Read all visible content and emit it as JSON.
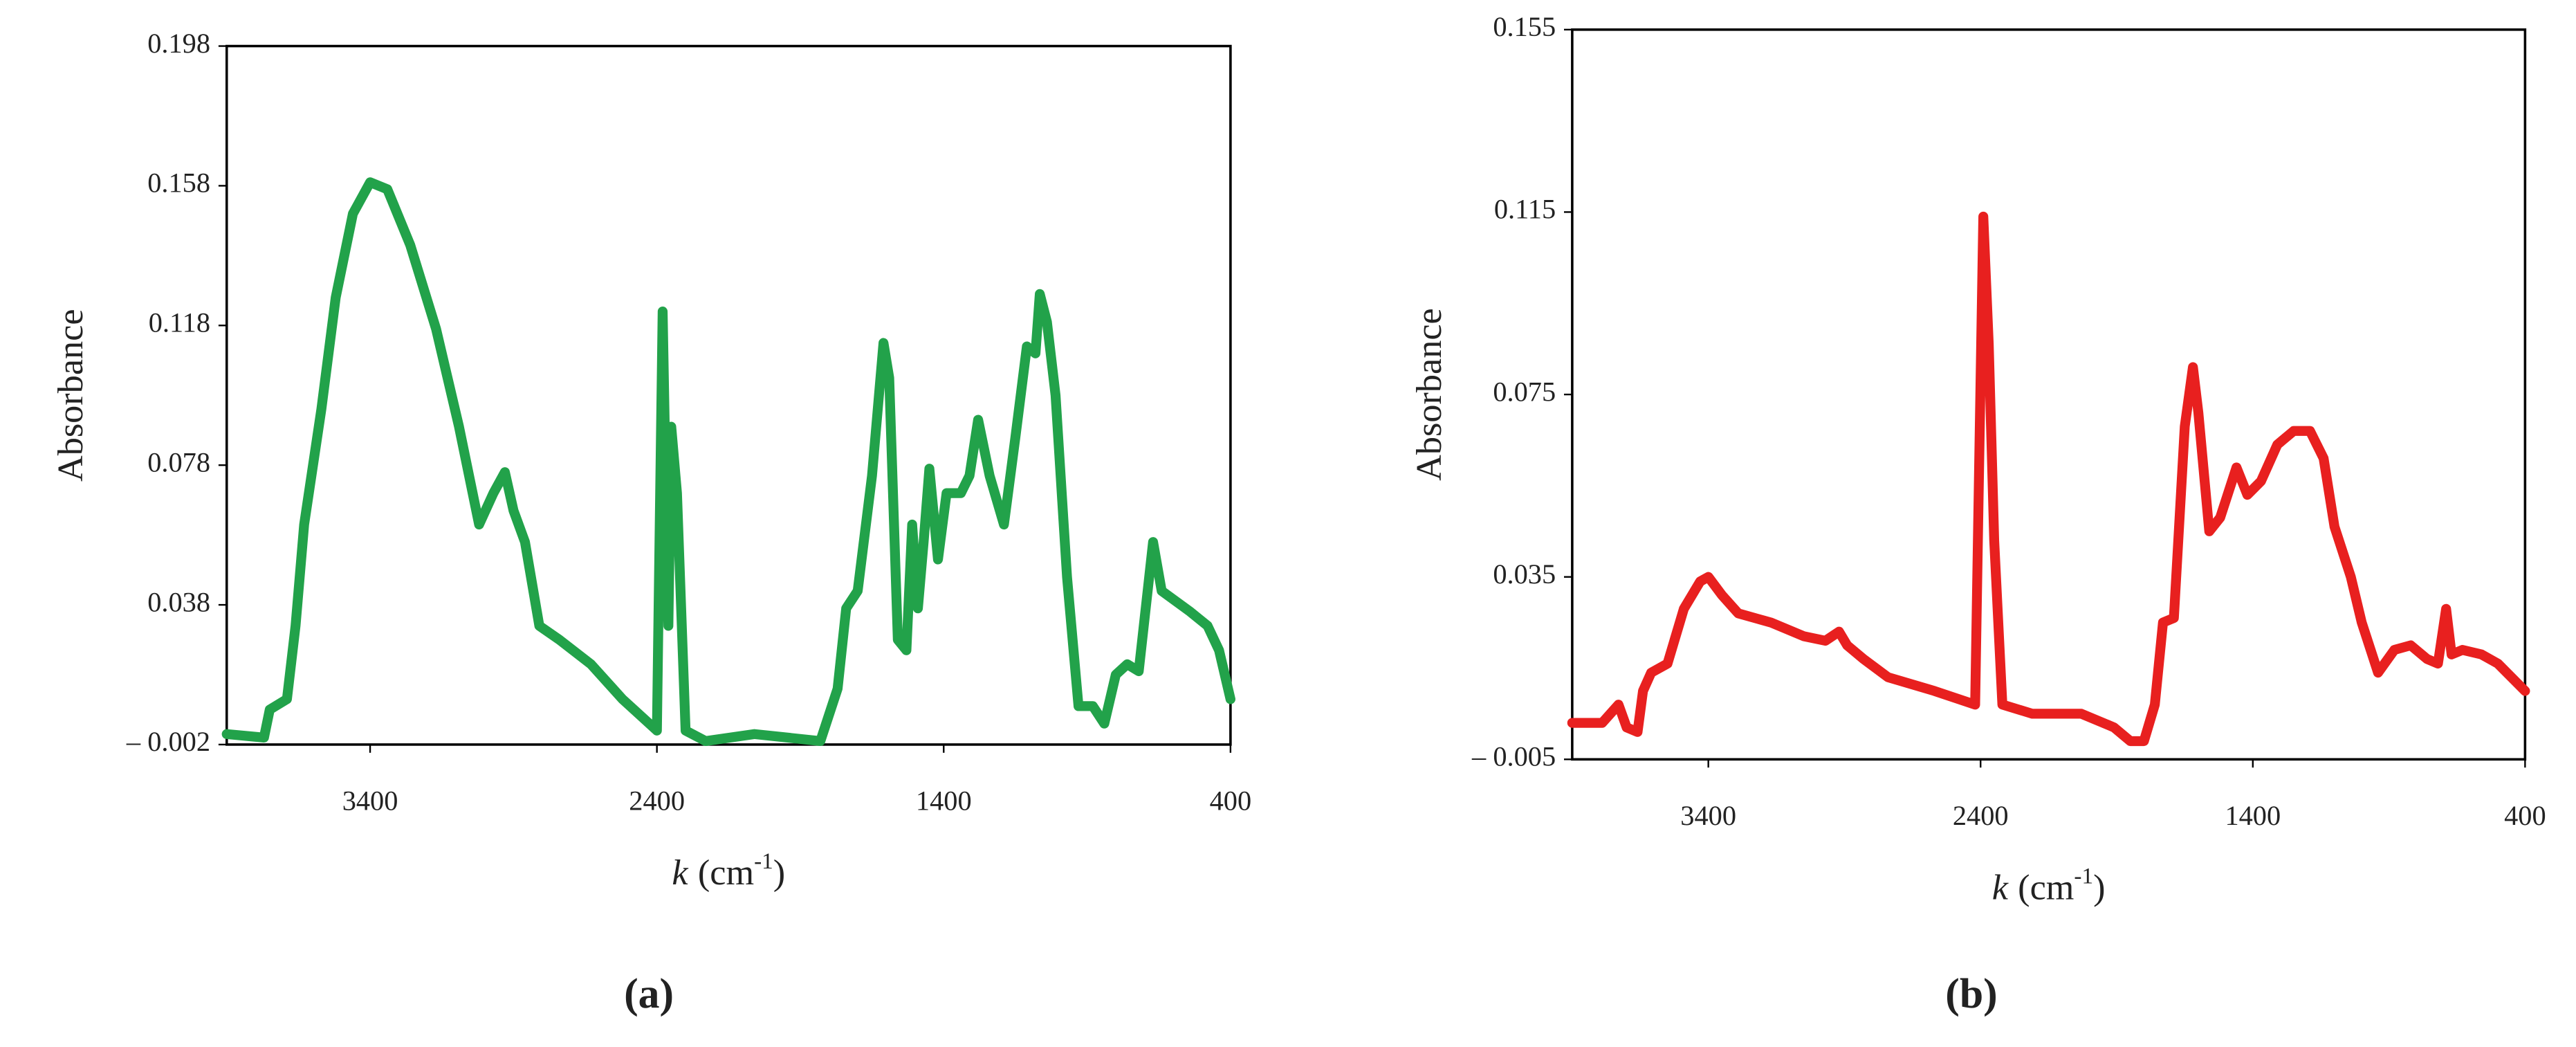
{
  "chart_data": [
    {
      "type": "line",
      "caption": "(a)",
      "ylabel": "Absorbance",
      "xlabel": {
        "symbol": "k",
        "unit": "(cm",
        "exponent": "-1",
        "close": ")"
      },
      "xlim": [
        3900,
        400
      ],
      "xticks": [
        3400,
        2400,
        1400,
        400
      ],
      "ylim": [
        -0.002,
        0.198
      ],
      "yticks": [
        {
          "value": -0.002,
          "label": "– 0.002"
        },
        0.038,
        0.078,
        0.118,
        0.158,
        0.198
      ],
      "x": [
        3900,
        3770,
        3750,
        3690,
        3660,
        3630,
        3570,
        3520,
        3460,
        3400,
        3340,
        3260,
        3170,
        3090,
        3020,
        2970,
        2930,
        2900,
        2860,
        2810,
        2740,
        2630,
        2520,
        2400,
        2380,
        2360,
        2350,
        2330,
        2300,
        2230,
        2060,
        1830,
        1770,
        1740,
        1700,
        1650,
        1610,
        1590,
        1560,
        1530,
        1510,
        1490,
        1470,
        1450,
        1420,
        1390,
        1340,
        1310,
        1280,
        1240,
        1190,
        1150,
        1110,
        1080,
        1065,
        1040,
        1010,
        970,
        930,
        880,
        840,
        800,
        760,
        720,
        670,
        640,
        590,
        540,
        480,
        440,
        400
      ],
      "series": [
        {
          "color": "#22a24a",
          "values": [
            0.001,
            0.0,
            0.008,
            0.011,
            0.032,
            0.061,
            0.094,
            0.126,
            0.15,
            0.159,
            0.157,
            0.141,
            0.117,
            0.089,
            0.061,
            0.07,
            0.076,
            0.065,
            0.056,
            0.032,
            0.028,
            0.021,
            0.011,
            0.002,
            0.122,
            0.032,
            0.089,
            0.07,
            0.002,
            -0.001,
            0.001,
            -0.001,
            0.014,
            0.037,
            0.042,
            0.075,
            0.113,
            0.103,
            0.028,
            0.025,
            0.061,
            0.037,
            0.056,
            0.077,
            0.051,
            0.07,
            0.07,
            0.075,
            0.091,
            0.075,
            0.061,
            0.086,
            0.112,
            0.11,
            0.127,
            0.119,
            0.098,
            0.046,
            0.009,
            0.009,
            0.004,
            0.018,
            0.021,
            0.019,
            0.056,
            0.042,
            0.039,
            0.036,
            0.032,
            0.025,
            0.011
          ]
        }
      ]
    },
    {
      "type": "line",
      "caption": "(b)",
      "ylabel": "Absorbance",
      "xlabel": {
        "symbol": "k",
        "unit": "(cm",
        "exponent": "-1",
        "close": ")"
      },
      "xlim": [
        3900,
        400
      ],
      "xticks": [
        3400,
        2400,
        1400,
        400
      ],
      "ylim": [
        -0.005,
        0.155
      ],
      "yticks": [
        {
          "value": -0.005,
          "label": "– 0.005"
        },
        0.035,
        0.075,
        0.115,
        0.155
      ],
      "x": [
        3900,
        3790,
        3730,
        3700,
        3660,
        3640,
        3610,
        3550,
        3490,
        3430,
        3400,
        3350,
        3290,
        3170,
        3050,
        2970,
        2920,
        2890,
        2830,
        2740,
        2570,
        2420,
        2390,
        2370,
        2350,
        2320,
        2210,
        2030,
        1910,
        1850,
        1800,
        1760,
        1730,
        1690,
        1650,
        1620,
        1600,
        1560,
        1520,
        1460,
        1420,
        1370,
        1310,
        1250,
        1190,
        1140,
        1100,
        1040,
        1000,
        940,
        880,
        820,
        760,
        720,
        690,
        670,
        630,
        560,
        500,
        400
      ],
      "series": [
        {
          "color": "#e8201f",
          "values": [
            0.003,
            0.003,
            0.007,
            0.002,
            0.001,
            0.01,
            0.014,
            0.016,
            0.028,
            0.034,
            0.035,
            0.031,
            0.027,
            0.025,
            0.022,
            0.021,
            0.023,
            0.02,
            0.017,
            0.013,
            0.01,
            0.007,
            0.114,
            0.086,
            0.043,
            0.007,
            0.005,
            0.005,
            0.002,
            -0.001,
            -0.001,
            0.007,
            0.025,
            0.026,
            0.068,
            0.081,
            0.071,
            0.045,
            0.048,
            0.059,
            0.053,
            0.056,
            0.064,
            0.067,
            0.067,
            0.061,
            0.046,
            0.035,
            0.025,
            0.014,
            0.019,
            0.02,
            0.017,
            0.016,
            0.028,
            0.018,
            0.019,
            0.018,
            0.016,
            0.01
          ]
        }
      ]
    }
  ]
}
